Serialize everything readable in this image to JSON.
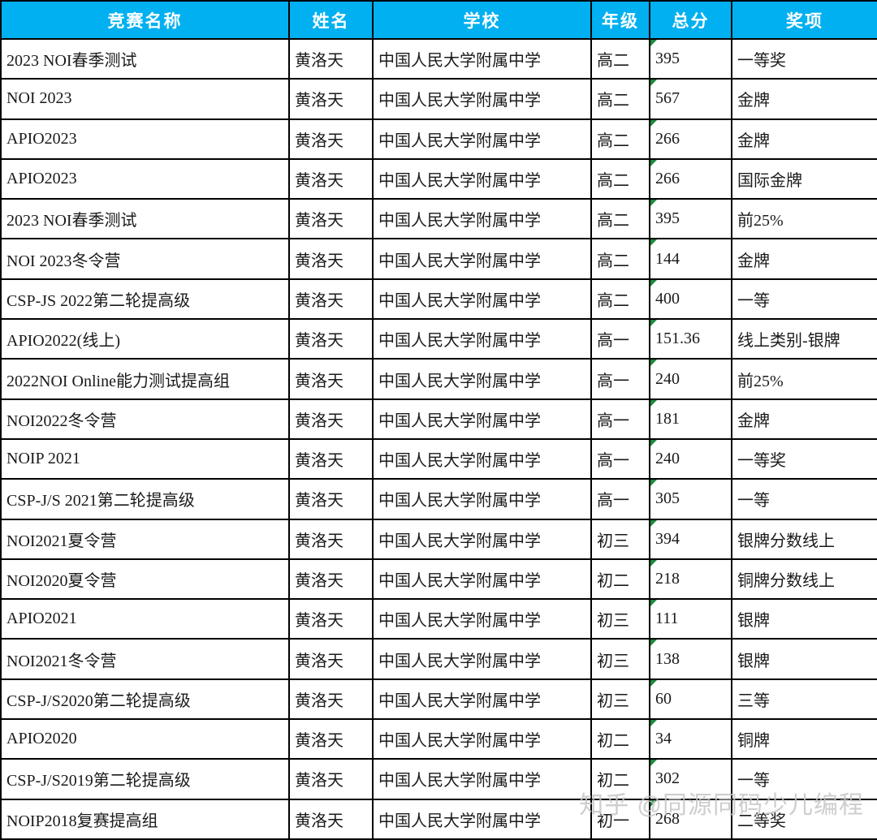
{
  "table": {
    "columns": [
      {
        "key": "competition",
        "label": "竞赛名称"
      },
      {
        "key": "name",
        "label": "姓名"
      },
      {
        "key": "school",
        "label": "学校"
      },
      {
        "key": "grade",
        "label": "年级"
      },
      {
        "key": "score",
        "label": "总分"
      },
      {
        "key": "award",
        "label": "奖项"
      }
    ],
    "rows": [
      [
        "2023 NOI春季测试",
        "黄洛天",
        "中国人民大学附属中学",
        "高二",
        "395",
        "一等奖"
      ],
      [
        "NOI 2023",
        "黄洛天",
        "中国人民大学附属中学",
        "高二",
        "567",
        "金牌"
      ],
      [
        "APIO2023",
        "黄洛天",
        "中国人民大学附属中学",
        "高二",
        "266",
        "金牌"
      ],
      [
        "APIO2023",
        "黄洛天",
        "中国人民大学附属中学",
        "高二",
        "266",
        "国际金牌"
      ],
      [
        "2023 NOI春季测试",
        "黄洛天",
        "中国人民大学附属中学",
        "高二",
        "395",
        "前25%"
      ],
      [
        "NOI 2023冬令营",
        "黄洛天",
        "中国人民大学附属中学",
        "高二",
        "144",
        "金牌"
      ],
      [
        "CSP-JS 2022第二轮提高级",
        "黄洛天",
        "中国人民大学附属中学",
        "高二",
        "400",
        "一等"
      ],
      [
        "APIO2022(线上)",
        "黄洛天",
        "中国人民大学附属中学",
        "高一",
        "151.36",
        "线上类别-银牌"
      ],
      [
        "2022NOI Online能力测试提高组",
        "黄洛天",
        "中国人民大学附属中学",
        "高一",
        "240",
        "前25%"
      ],
      [
        "NOI2022冬令营",
        "黄洛天",
        "中国人民大学附属中学",
        "高一",
        "181",
        "金牌"
      ],
      [
        "NOIP 2021",
        "黄洛天",
        "中国人民大学附属中学",
        "高一",
        "240",
        "一等奖"
      ],
      [
        "CSP-J/S 2021第二轮提高级",
        "黄洛天",
        "中国人民大学附属中学",
        "高一",
        "305",
        "一等"
      ],
      [
        "NOI2021夏令营",
        "黄洛天",
        "中国人民大学附属中学",
        "初三",
        "394",
        "银牌分数线上"
      ],
      [
        "NOI2020夏令营",
        "黄洛天",
        "中国人民大学附属中学",
        "初二",
        "218",
        "铜牌分数线上"
      ],
      [
        "APIO2021",
        "黄洛天",
        "中国人民大学附属中学",
        "初三",
        "111",
        "银牌"
      ],
      [
        "NOI2021冬令营",
        "黄洛天",
        "中国人民大学附属中学",
        "初三",
        "138",
        "银牌"
      ],
      [
        "CSP-J/S2020第二轮提高级",
        "黄洛天",
        "中国人民大学附属中学",
        "初三",
        "60",
        "三等"
      ],
      [
        "APIO2020",
        "黄洛天",
        "中国人民大学附属中学",
        "初二",
        "34",
        "铜牌"
      ],
      [
        "CSP-J/S2019第二轮提高级",
        "黄洛天",
        "中国人民大学附属中学",
        "初二",
        "302",
        "一等"
      ],
      [
        "NOIP2018复赛提高组",
        "黄洛天",
        "中国人民大学附属中学",
        "初一",
        "268",
        "二等奖"
      ]
    ]
  },
  "watermark": {
    "text": "知乎 @同源同码少儿编程"
  },
  "colors": {
    "header_bg": "#00b0f0",
    "header_text": "#ffffff",
    "border": "#000000",
    "cell_text": "#1a1a1a",
    "score_flag": "#1f8a3b",
    "watermark_text": "#c6c6c6"
  }
}
